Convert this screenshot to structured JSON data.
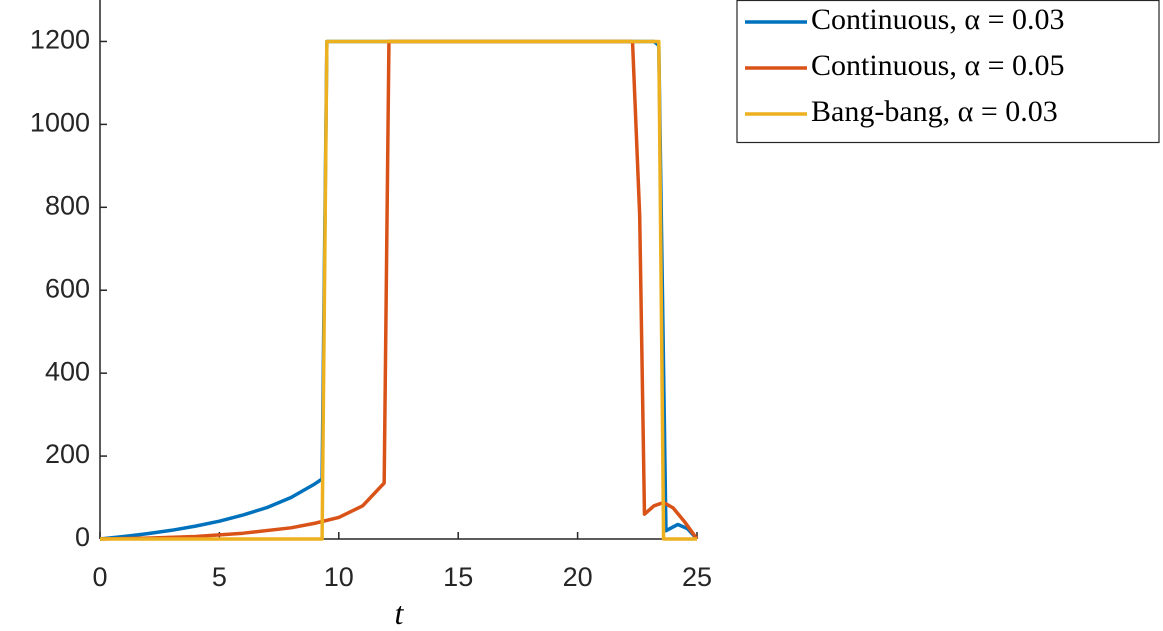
{
  "chart_data": {
    "type": "line",
    "xlabel": "t",
    "xlim": [
      0,
      25
    ],
    "xticks": [
      0,
      5,
      10,
      15,
      20,
      25
    ],
    "ylim": [
      0,
      1300
    ],
    "yticks": [
      0,
      200,
      400,
      600,
      800,
      1000,
      1200
    ],
    "grid": false,
    "legend": "outside-top-right",
    "series": [
      {
        "name": "Continuous, α = 0.03",
        "color": "#0072BD",
        "x": [
          0,
          1,
          2,
          3,
          4,
          5,
          6,
          7,
          8,
          9,
          9.3,
          9.5,
          23.2,
          23.4,
          23.7,
          24.2,
          24.6,
          25
        ],
        "values": [
          0,
          6,
          13,
          21,
          31,
          43,
          58,
          76,
          100,
          133,
          145,
          1200,
          1200,
          1190,
          20,
          35,
          25,
          0
        ]
      },
      {
        "name": "Continuous, α = 0.05",
        "color": "#D95319",
        "x": [
          0,
          2,
          4,
          6,
          8,
          9,
          10,
          11,
          11.9,
          12.1,
          22.3,
          22.6,
          22.8,
          23.2,
          23.6,
          24,
          24.5,
          25
        ],
        "values": [
          0,
          2,
          6,
          14,
          27,
          38,
          52,
          80,
          135,
          1200,
          1200,
          780,
          60,
          80,
          88,
          75,
          40,
          0
        ]
      },
      {
        "name": "Bang-bang, α = 0.03",
        "color": "#EDB120",
        "x": [
          0,
          9.3,
          9.5,
          23.4,
          23.6,
          25
        ],
        "values": [
          0,
          0,
          1200,
          1200,
          0,
          0
        ]
      }
    ]
  }
}
